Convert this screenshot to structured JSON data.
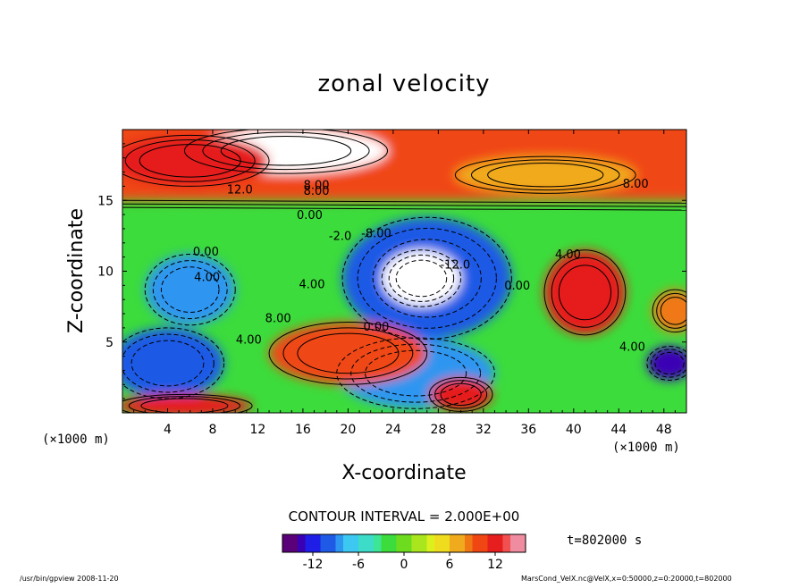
{
  "chart_data": {
    "type": "heatmap",
    "title": "zonal velocity",
    "xlabel": "X-coordinate",
    "ylabel": "Z-coordinate",
    "x_unit_left": "(×1000 m)",
    "x_unit_right": "(×1000 m)",
    "xlim": [
      0,
      50
    ],
    "ylim": [
      0,
      20
    ],
    "x_ticks": [
      4,
      8,
      12,
      16,
      20,
      24,
      28,
      32,
      36,
      40,
      44,
      48
    ],
    "y_ticks": [
      5,
      10,
      15
    ],
    "contour_interval_text": "CONTOUR INTERVAL = 2.000E+00",
    "time_text": "t=802000 s",
    "colorbar": {
      "min": -16,
      "max": 16,
      "ticks": [
        -12,
        -6,
        0,
        6,
        12
      ],
      "colors": [
        "#5a0078",
        "#3a00b4",
        "#1e1ee6",
        "#1e5ae6",
        "#2d96f0",
        "#3cc8f0",
        "#3cdcc8",
        "#3ce696",
        "#3cdc3c",
        "#6edc1e",
        "#aae61e",
        "#dcf01e",
        "#f0dc1e",
        "#f0aa1e",
        "#f07814",
        "#f04614",
        "#e61e1e",
        "#f05050",
        "#f08ca0"
      ],
      "extremes": {
        "high": "#ffffff",
        "low": "#ffffff"
      }
    },
    "contour_labels": [
      {
        "text": "12.0",
        "x": 10.4,
        "z": 15.5
      },
      {
        "text": "8.00",
        "x": 17.2,
        "z": 15.8
      },
      {
        "text": "8.00",
        "x": 17.2,
        "z": 15.4
      },
      {
        "text": "8.00",
        "x": 45.5,
        "z": 15.9
      },
      {
        "text": "0.00",
        "x": 16.6,
        "z": 13.7
      },
      {
        "text": "-8.00",
        "x": 22.5,
        "z": 12.4
      },
      {
        "text": "-2.0",
        "x": 19.3,
        "z": 12.2
      },
      {
        "text": "0.00",
        "x": 7.4,
        "z": 11.1
      },
      {
        "text": "4.00",
        "x": 7.5,
        "z": 9.3
      },
      {
        "text": "4.00",
        "x": 16.8,
        "z": 8.8
      },
      {
        "text": "-12.0",
        "x": 29.5,
        "z": 10.2
      },
      {
        "text": "0.00",
        "x": 35.0,
        "z": 8.7
      },
      {
        "text": "4.00",
        "x": 39.5,
        "z": 10.9
      },
      {
        "text": "8.00",
        "x": 13.8,
        "z": 6.4
      },
      {
        "text": "4.00",
        "x": 11.2,
        "z": 4.9
      },
      {
        "text": "0.00",
        "x": 22.5,
        "z": 5.8
      },
      {
        "text": "4.00",
        "x": 45.2,
        "z": 4.4
      }
    ],
    "features": [
      {
        "kind": "band",
        "value": 10,
        "z_from": 15.0,
        "z_to": 20
      },
      {
        "kind": "blob",
        "value": 16,
        "cx": 14.5,
        "cz": 18.5,
        "rx": 9.0,
        "rz": 1.6
      },
      {
        "kind": "blob",
        "value": 12,
        "cx": 6.0,
        "cz": 17.8,
        "rx": 7.0,
        "rz": 1.8
      },
      {
        "kind": "blob",
        "value": 6,
        "cx": 37.5,
        "cz": 16.8,
        "rx": 8.0,
        "rz": 1.3
      },
      {
        "kind": "blob",
        "value": -10,
        "cx": 27.0,
        "cz": 9.5,
        "rx": 7.5,
        "rz": 4.3
      },
      {
        "kind": "blob",
        "value": -16,
        "cx": 26.5,
        "cz": 9.5,
        "rx": 3.5,
        "rz": 2.0
      },
      {
        "kind": "blob",
        "value": -8,
        "cx": 6.0,
        "cz": 8.7,
        "rx": 4.0,
        "rz": 2.5
      },
      {
        "kind": "blob",
        "value": -10,
        "cx": 4.0,
        "cz": 3.5,
        "rx": 5.0,
        "rz": 2.5
      },
      {
        "kind": "blob",
        "value": -8,
        "cx": 26.0,
        "cz": 2.8,
        "rx": 7.0,
        "rz": 2.5
      },
      {
        "kind": "blob",
        "value": 12,
        "cx": 41.0,
        "cz": 8.5,
        "rx": 3.6,
        "rz": 3.0
      },
      {
        "kind": "blob",
        "value": 10,
        "cx": 20.0,
        "cz": 4.2,
        "rx": 7.0,
        "rz": 2.2
      },
      {
        "kind": "blob",
        "value": 12,
        "cx": 30.0,
        "cz": 1.3,
        "rx": 2.8,
        "rz": 1.2
      },
      {
        "kind": "blob",
        "value": 12,
        "cx": 5.5,
        "cz": 0.5,
        "rx": 6.0,
        "rz": 0.8
      },
      {
        "kind": "blob",
        "value": -14,
        "cx": 48.5,
        "cz": 3.5,
        "rx": 2.0,
        "rz": 1.2
      },
      {
        "kind": "blob",
        "value": 8,
        "cx": 49.0,
        "cz": 7.2,
        "rx": 2.0,
        "rz": 1.5
      }
    ]
  },
  "footer": {
    "left": "/usr/bin/gpview  2008-11-20",
    "right": "MarsCond_VelX.nc@VelX,x=0:50000,z=0:20000,t=802000"
  }
}
